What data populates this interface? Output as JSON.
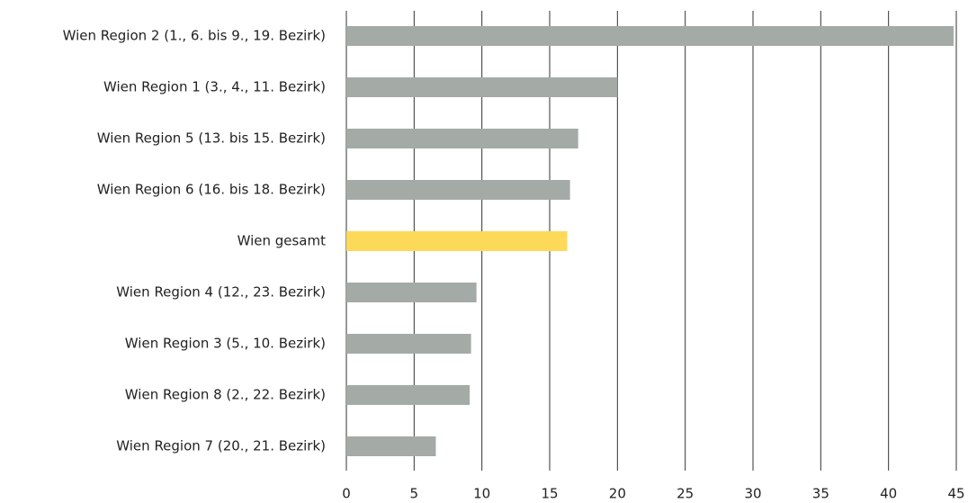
{
  "chart_data": {
    "type": "hbar",
    "categories": [
      "Wien Region 2 (1., 6. bis 9., 19. Bezirk)",
      "Wien Region 1 (3., 4., 11. Bezirk)",
      "Wien Region 5 (13. bis 15. Bezirk)",
      "Wien Region 6 (16. bis 18. Bezirk)",
      "Wien gesamt",
      "Wien Region 4 (12., 23. Bezirk)",
      "Wien Region 3 (5., 10. Bezirk)",
      "Wien Region 8 (2., 22. Bezirk)",
      "Wien Region 7 (20., 21. Bezirk)"
    ],
    "values": [
      44.8,
      20.0,
      17.1,
      16.5,
      16.3,
      9.6,
      9.2,
      9.1,
      6.6
    ],
    "colors": [
      "#a4aaa5",
      "#a4aaa5",
      "#a4aaa5",
      "#a4aaa5",
      "#fdd95a",
      "#a4aaa5",
      "#a4aaa5",
      "#a4aaa5",
      "#a4aaa5"
    ],
    "xlim": [
      0,
      45
    ],
    "xticks": [
      0,
      5,
      10,
      15,
      20,
      25,
      30,
      35,
      40,
      45
    ],
    "grid": true
  }
}
